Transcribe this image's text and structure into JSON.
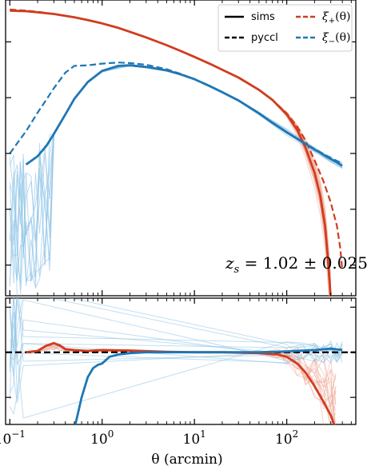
{
  "chart_data": {
    "type": "line",
    "xlabel": "θ (arcmin)",
    "xscale": "log",
    "xlim": [
      0.09,
      560
    ],
    "x_ticks": [
      {
        "base": "10",
        "exp": "−1"
      },
      {
        "base": "10",
        "exp": "0"
      },
      {
        "base": "10",
        "exp": "1"
      },
      {
        "base": "10",
        "exp": "2"
      }
    ],
    "annotation": "z_s = 1.02 ± 0.025",
    "annotation_parts": {
      "var": "z",
      "sub": "s",
      "rest": " = 1.02 ± 0.025"
    },
    "legend": {
      "position": "top-right",
      "entries": [
        {
          "label": "sims",
          "style": "solid",
          "color": "#000000"
        },
        {
          "label": "ξ+(θ)",
          "symbol": "ξ",
          "sub": "+",
          "arg": "(θ)",
          "style": "dashed",
          "color": "#d03c1d"
        },
        {
          "label": "pyccl",
          "style": "dashed",
          "color": "#000000"
        },
        {
          "label": "ξ−(θ)",
          "symbol": "ξ",
          "sub": "−",
          "arg": "(θ)",
          "style": "dashed",
          "color": "#1f77b4"
        }
      ]
    },
    "colors": {
      "xi_plus": "#d03c1d",
      "xi_plus_light": "#f0a898",
      "xi_minus": "#1f77b4",
      "xi_minus_light": "#8ec3e6"
    },
    "top_panel": {
      "yscale": "log",
      "ylim_log10": [
        -7.55,
        -2.25
      ],
      "y_ticks_unlabeled_log10": [
        -3,
        -4,
        -5,
        -6,
        -7
      ],
      "series": [
        {
          "key": "xi_plus_pyccl",
          "style": "dashed",
          "color": "#d03c1d",
          "x": [
            0.1,
            0.15,
            0.2,
            0.3,
            0.5,
            0.7,
            1,
            1.5,
            2,
            3,
            5,
            7,
            10,
            15,
            20,
            30,
            50,
            70,
            100,
            130,
            160,
            200,
            250,
            300,
            350,
            380,
            400
          ],
          "log10y": [
            -2.42,
            -2.44,
            -2.46,
            -2.5,
            -2.56,
            -2.61,
            -2.67,
            -2.75,
            -2.82,
            -2.92,
            -3.06,
            -3.16,
            -3.27,
            -3.4,
            -3.5,
            -3.64,
            -3.86,
            -4.04,
            -4.28,
            -4.52,
            -4.77,
            -5.12,
            -5.5,
            -5.88,
            -6.3,
            -6.7,
            -7.1
          ]
        },
        {
          "key": "xi_plus_sims",
          "style": "solid",
          "color": "#d03c1d",
          "x": [
            0.1,
            0.15,
            0.2,
            0.3,
            0.5,
            0.7,
            1,
            1.5,
            2,
            3,
            5,
            7,
            10,
            15,
            20,
            30,
            50,
            70,
            100,
            130,
            160,
            200,
            230,
            260,
            280,
            300
          ],
          "log10y": [
            -2.44,
            -2.45,
            -2.47,
            -2.5,
            -2.56,
            -2.61,
            -2.67,
            -2.75,
            -2.82,
            -2.92,
            -3.06,
            -3.16,
            -3.27,
            -3.4,
            -3.5,
            -3.64,
            -3.86,
            -4.04,
            -4.3,
            -4.58,
            -4.9,
            -5.35,
            -5.75,
            -6.3,
            -6.9,
            -7.6
          ]
        },
        {
          "key": "xi_minus_pyccl",
          "style": "dashed",
          "color": "#1f77b4",
          "x": [
            0.1,
            0.12,
            0.15,
            0.2,
            0.25,
            0.3,
            0.4,
            0.5,
            0.7,
            1,
            1.5,
            2,
            3,
            5,
            7,
            10,
            15,
            20,
            30,
            50,
            70,
            100,
            150,
            200,
            300,
            400
          ],
          "log10y": [
            -5.0,
            -4.82,
            -4.6,
            -4.27,
            -4.03,
            -3.83,
            -3.55,
            -3.43,
            -3.42,
            -3.39,
            -3.37,
            -3.38,
            -3.41,
            -3.49,
            -3.57,
            -3.67,
            -3.8,
            -3.9,
            -4.05,
            -4.28,
            -4.45,
            -4.62,
            -4.8,
            -4.92,
            -5.08,
            -5.18
          ]
        },
        {
          "key": "xi_minus_sims",
          "style": "solid",
          "color": "#1f77b4",
          "x": [
            0.15,
            0.2,
            0.25,
            0.3,
            0.4,
            0.5,
            0.7,
            1,
            1.5,
            2,
            3,
            5,
            7,
            10,
            15,
            20,
            30,
            50,
            70,
            100,
            150,
            200,
            300,
            400
          ],
          "log10y": [
            -5.2,
            -5.05,
            -4.86,
            -4.65,
            -4.3,
            -4.02,
            -3.72,
            -3.52,
            -3.43,
            -3.42,
            -3.45,
            -3.51,
            -3.58,
            -3.67,
            -3.8,
            -3.9,
            -4.05,
            -4.28,
            -4.45,
            -4.62,
            -4.8,
            -4.93,
            -5.1,
            -5.22
          ]
        }
      ]
    },
    "bottom_panel": {
      "ylim": [
        -1.6,
        1.2
      ],
      "reference_line": 0,
      "y_ticks_unlabeled": [
        1,
        0,
        -1
      ],
      "series": [
        {
          "key": "xi_plus_ratio_mean",
          "style": "solid",
          "color": "#d03c1d",
          "x": [
            0.15,
            0.2,
            0.25,
            0.3,
            0.35,
            0.4,
            0.5,
            0.7,
            1,
            2,
            5,
            10,
            20,
            50,
            80,
            100,
            130,
            160,
            200,
            250,
            300,
            340
          ],
          "y": [
            0.0,
            0.03,
            0.15,
            0.2,
            0.15,
            0.07,
            0.05,
            0.03,
            0.05,
            0.04,
            0.01,
            0.0,
            0.0,
            -0.02,
            -0.05,
            -0.1,
            -0.25,
            -0.45,
            -0.75,
            -1.1,
            -1.4,
            -1.7
          ]
        },
        {
          "key": "xi_minus_ratio_mean",
          "style": "solid",
          "color": "#1f77b4",
          "x": [
            0.5,
            0.6,
            0.7,
            0.8,
            0.9,
            1,
            1.2,
            1.5,
            2,
            3,
            5,
            10,
            20,
            50,
            100,
            200,
            300,
            400
          ],
          "y": [
            -1.7,
            -1.0,
            -0.55,
            -0.35,
            -0.28,
            -0.25,
            -0.1,
            -0.05,
            -0.02,
            0.0,
            0.0,
            0.0,
            0.0,
            0.0,
            0.02,
            0.05,
            0.08,
            0.05
          ]
        }
      ]
    }
  }
}
